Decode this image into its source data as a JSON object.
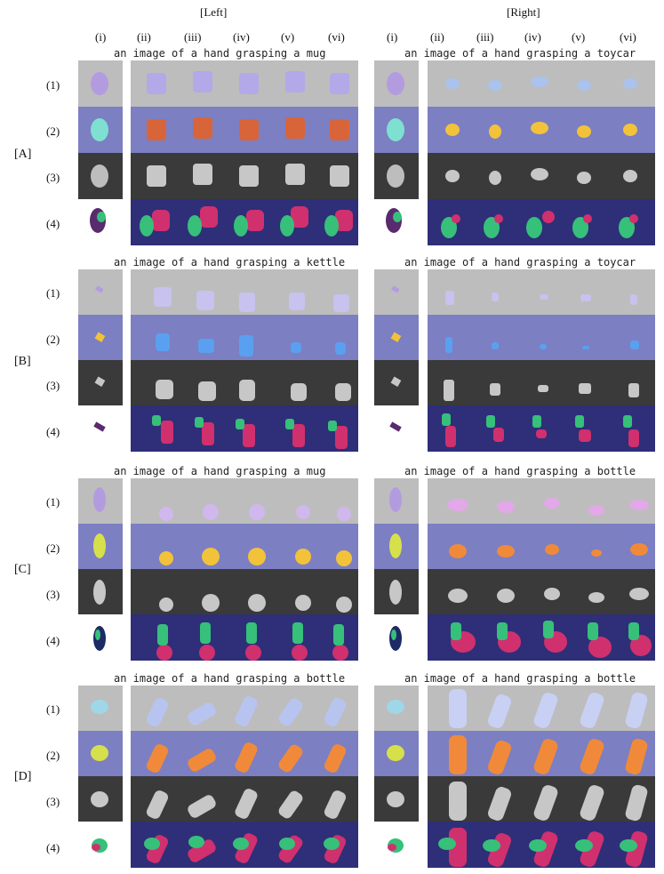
{
  "side_headers": [
    "[Left]",
    "[Right]"
  ],
  "column_labels": [
    "(i)",
    "(ii)",
    "(iii)",
    "(iv)",
    "(v)",
    "(vi)"
  ],
  "row_labels": [
    "(1)",
    "(2)",
    "(3)",
    "(4)"
  ],
  "groups": [
    {
      "label": "[A]",
      "left_caption": "an image of a hand grasping a mug",
      "right_caption": "an image of a hand grasping a toycar"
    },
    {
      "label": "[B]",
      "left_caption": "an image of a hand grasping a kettle",
      "right_caption": "an image of a hand grasping a toycar"
    },
    {
      "label": "[C]",
      "left_caption": "an image of a hand grasping a mug",
      "right_caption": "an image of a hand grasping a bottle"
    },
    {
      "label": "[D]",
      "left_caption": "an image of a hand grasping a bottle",
      "right_caption": "an image of a hand grasping a bottle"
    }
  ],
  "colors": {
    "row1_bg": "#bdbdbd",
    "row2_bg": "#7c7fc2",
    "row3_bg": "#3a3a3a",
    "row4_bg": "#2e2f78",
    "hand": "#36c07a",
    "object": "#d0306e"
  }
}
